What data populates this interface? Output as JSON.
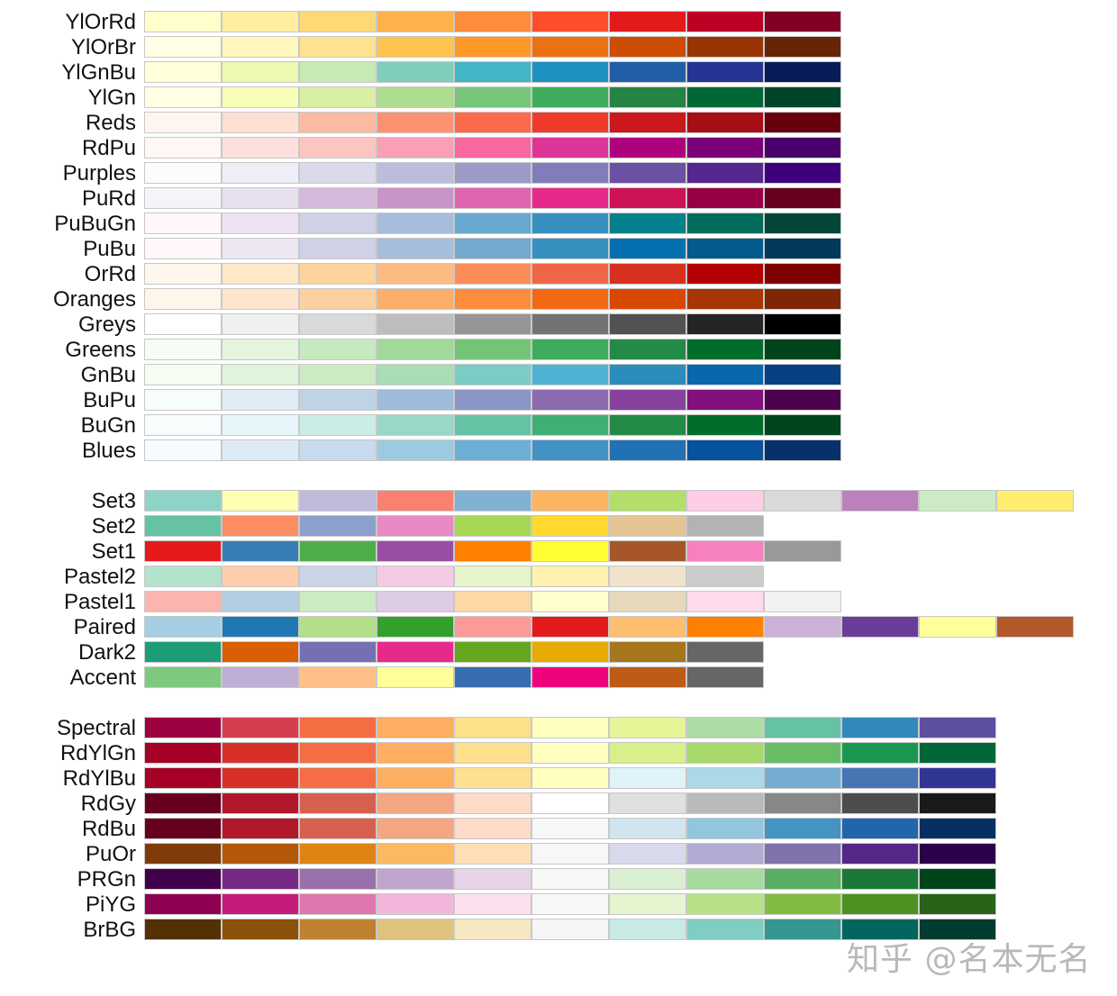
{
  "chart_data": {
    "type": "heatmap",
    "title": "",
    "groups": [
      {
        "palettes": [
          {
            "name": "YlOrRd",
            "colors": [
              "#ffffcc",
              "#ffeda0",
              "#fed976",
              "#feb24c",
              "#fd8d3c",
              "#fc4e2a",
              "#e31a1c",
              "#bd0026",
              "#800026"
            ]
          },
          {
            "name": "YlOrBr",
            "colors": [
              "#ffffe5",
              "#fff7bc",
              "#fee391",
              "#fec44f",
              "#fe9929",
              "#ec7014",
              "#cc4c02",
              "#993404",
              "#662506"
            ]
          },
          {
            "name": "YlGnBu",
            "colors": [
              "#ffffd9",
              "#edf8b1",
              "#c7e9b4",
              "#7fcdbb",
              "#41b6c4",
              "#1d91c0",
              "#225ea8",
              "#253494",
              "#081d58"
            ]
          },
          {
            "name": "YlGn",
            "colors": [
              "#ffffe5",
              "#f7fcb9",
              "#d9f0a3",
              "#addd8e",
              "#78c679",
              "#41ab5d",
              "#238443",
              "#006837",
              "#004529"
            ]
          },
          {
            "name": "Reds",
            "colors": [
              "#fff5f0",
              "#fee0d2",
              "#fcbba1",
              "#fc9272",
              "#fb6a4a",
              "#ef3b2c",
              "#cb181d",
              "#a50f15",
              "#67000d"
            ]
          },
          {
            "name": "RdPu",
            "colors": [
              "#fff7f3",
              "#fde0dd",
              "#fcc5c0",
              "#fa9fb5",
              "#f768a1",
              "#dd3497",
              "#ae017e",
              "#7a0177",
              "#49006a"
            ]
          },
          {
            "name": "Purples",
            "colors": [
              "#fcfbfd",
              "#efedf5",
              "#dadaeb",
              "#bcbddc",
              "#9e9ac8",
              "#807dba",
              "#6a51a3",
              "#54278f",
              "#3f007d"
            ]
          },
          {
            "name": "PuRd",
            "colors": [
              "#f7f4f9",
              "#e7e1ef",
              "#d4b9da",
              "#c994c7",
              "#df65b0",
              "#e7298a",
              "#ce1256",
              "#980043",
              "#67001f"
            ]
          },
          {
            "name": "PuBuGn",
            "colors": [
              "#fff7fb",
              "#ece2f0",
              "#d0d1e6",
              "#a6bddb",
              "#67a9cf",
              "#3690c0",
              "#02818a",
              "#016c59",
              "#014636"
            ]
          },
          {
            "name": "PuBu",
            "colors": [
              "#fff7fb",
              "#ece7f2",
              "#d0d1e6",
              "#a6bddb",
              "#74a9cf",
              "#3690c0",
              "#0570b0",
              "#045a8d",
              "#023858"
            ]
          },
          {
            "name": "OrRd",
            "colors": [
              "#fff7ec",
              "#fee8c8",
              "#fdd49e",
              "#fdbb84",
              "#fc8d59",
              "#ef6548",
              "#d7301f",
              "#b30000",
              "#7f0000"
            ]
          },
          {
            "name": "Oranges",
            "colors": [
              "#fff5eb",
              "#fee6ce",
              "#fdd0a2",
              "#fdae6b",
              "#fd8d3c",
              "#f16913",
              "#d94801",
              "#a63603",
              "#7f2704"
            ]
          },
          {
            "name": "Greys",
            "colors": [
              "#ffffff",
              "#f0f0f0",
              "#d9d9d9",
              "#bdbdbd",
              "#969696",
              "#737373",
              "#525252",
              "#252525",
              "#000000"
            ]
          },
          {
            "name": "Greens",
            "colors": [
              "#f7fcf5",
              "#e5f5e0",
              "#c7e9c0",
              "#a1d99b",
              "#74c476",
              "#41ab5d",
              "#238b45",
              "#006d2c",
              "#00441b"
            ]
          },
          {
            "name": "GnBu",
            "colors": [
              "#f7fcf0",
              "#e0f3db",
              "#ccebc5",
              "#a8ddb5",
              "#7bccc4",
              "#4eb3d3",
              "#2b8cbe",
              "#0868ac",
              "#084081"
            ]
          },
          {
            "name": "BuPu",
            "colors": [
              "#f7fcfd",
              "#e0ecf4",
              "#bfd3e6",
              "#9ebcda",
              "#8c96c6",
              "#8c6bb1",
              "#88419d",
              "#810f7c",
              "#4d004b"
            ]
          },
          {
            "name": "BuGn",
            "colors": [
              "#f7fcfd",
              "#e5f5f9",
              "#ccece6",
              "#99d8c9",
              "#66c2a4",
              "#41ae76",
              "#238b45",
              "#006d2c",
              "#00441b"
            ]
          },
          {
            "name": "Blues",
            "colors": [
              "#f7fbff",
              "#deebf7",
              "#c6dbef",
              "#9ecae1",
              "#6baed6",
              "#4292c6",
              "#2171b5",
              "#08519c",
              "#08306b"
            ]
          }
        ]
      },
      {
        "palettes": [
          {
            "name": "Set3",
            "colors": [
              "#8dd3c7",
              "#ffffb3",
              "#bebada",
              "#fb8072",
              "#80b1d3",
              "#fdb462",
              "#b3de69",
              "#fccde5",
              "#d9d9d9",
              "#bc80bd",
              "#ccebc5",
              "#ffed6f"
            ]
          },
          {
            "name": "Set2",
            "colors": [
              "#66c2a5",
              "#fc8d62",
              "#8da0cb",
              "#e78ac3",
              "#a6d854",
              "#ffd92f",
              "#e5c494",
              "#b3b3b3"
            ]
          },
          {
            "name": "Set1",
            "colors": [
              "#e41a1c",
              "#377eb8",
              "#4daf4a",
              "#984ea3",
              "#ff7f00",
              "#ffff33",
              "#a65628",
              "#f781bf",
              "#999999"
            ]
          },
          {
            "name": "Pastel2",
            "colors": [
              "#b3e2cd",
              "#fdcdac",
              "#cbd5e8",
              "#f4cae4",
              "#e6f5c9",
              "#fff2ae",
              "#f1e2cc",
              "#cccccc"
            ]
          },
          {
            "name": "Pastel1",
            "colors": [
              "#fbb4ae",
              "#b3cde3",
              "#ccebc5",
              "#decbe4",
              "#fed9a6",
              "#ffffcc",
              "#e5d8bd",
              "#fddaec",
              "#f2f2f2"
            ]
          },
          {
            "name": "Paired",
            "colors": [
              "#a6cee3",
              "#1f78b4",
              "#b2df8a",
              "#33a02c",
              "#fb9a99",
              "#e31a1c",
              "#fdbf6f",
              "#ff7f00",
              "#cab2d6",
              "#6a3d9a",
              "#ffff99",
              "#b15928"
            ]
          },
          {
            "name": "Dark2",
            "colors": [
              "#1b9e77",
              "#d95f02",
              "#7570b3",
              "#e7298a",
              "#66a61e",
              "#e6ab02",
              "#a6761d",
              "#666666"
            ]
          },
          {
            "name": "Accent",
            "colors": [
              "#7fc97f",
              "#beaed4",
              "#fdc086",
              "#ffff99",
              "#386cb0",
              "#f0027f",
              "#bf5b17",
              "#666666"
            ]
          }
        ]
      },
      {
        "palettes": [
          {
            "name": "Spectral",
            "colors": [
              "#9e0142",
              "#d53e4f",
              "#f46d43",
              "#fdae61",
              "#fee08b",
              "#ffffbf",
              "#e6f598",
              "#abdda4",
              "#66c2a5",
              "#3288bd",
              "#5e4fa2"
            ]
          },
          {
            "name": "RdYlGn",
            "colors": [
              "#a50026",
              "#d73027",
              "#f46d43",
              "#fdae61",
              "#fee08b",
              "#ffffbf",
              "#d9ef8b",
              "#a6d96a",
              "#66bd63",
              "#1a9850",
              "#006837"
            ]
          },
          {
            "name": "RdYlBu",
            "colors": [
              "#a50026",
              "#d73027",
              "#f46d43",
              "#fdae61",
              "#fee090",
              "#ffffbf",
              "#e0f3f8",
              "#abd9e9",
              "#74add1",
              "#4575b4",
              "#313695"
            ]
          },
          {
            "name": "RdGy",
            "colors": [
              "#67001f",
              "#b2182b",
              "#d6604d",
              "#f4a582",
              "#fddbc7",
              "#ffffff",
              "#e0e0e0",
              "#bababa",
              "#878787",
              "#4d4d4d",
              "#1a1a1a"
            ]
          },
          {
            "name": "RdBu",
            "colors": [
              "#67001f",
              "#b2182b",
              "#d6604d",
              "#f4a582",
              "#fddbc7",
              "#f7f7f7",
              "#d1e5f0",
              "#92c5de",
              "#4393c3",
              "#2166ac",
              "#053061"
            ]
          },
          {
            "name": "PuOr",
            "colors": [
              "#7f3b08",
              "#b35806",
              "#e08214",
              "#fdb863",
              "#fee0b6",
              "#f7f7f7",
              "#d8daeb",
              "#b2abd2",
              "#8073ac",
              "#542788",
              "#2d004b"
            ]
          },
          {
            "name": "PRGn",
            "colors": [
              "#40004b",
              "#762a83",
              "#9970ab",
              "#c2a5cf",
              "#e7d4e8",
              "#f7f7f7",
              "#d9f0d3",
              "#a6dba0",
              "#5aae61",
              "#1b7837",
              "#00441b"
            ]
          },
          {
            "name": "PiYG",
            "colors": [
              "#8e0152",
              "#c51b7d",
              "#de77ae",
              "#f1b6da",
              "#fde0ef",
              "#f7f7f7",
              "#e6f5d0",
              "#b8e186",
              "#7fbc41",
              "#4d9221",
              "#276419"
            ]
          },
          {
            "name": "BrBG",
            "colors": [
              "#543005",
              "#8c510a",
              "#bf812d",
              "#dfc27d",
              "#f6e8c3",
              "#f5f5f5",
              "#c7eae5",
              "#80cdc1",
              "#35978f",
              "#01665e",
              "#003c30"
            ]
          }
        ]
      }
    ]
  },
  "watermark": "知乎 @名本无名"
}
